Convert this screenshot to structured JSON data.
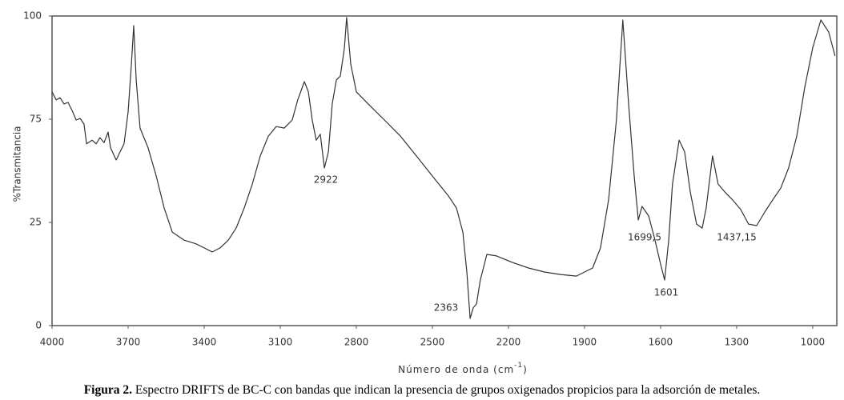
{
  "chart_data": {
    "type": "line",
    "y_label": "%Transmitancia",
    "x_label": [
      "Número de onda (cm",
      "-1",
      ")"
    ],
    "x": [
      4000,
      3984,
      3968,
      3953,
      3937,
      3921,
      3905,
      3889,
      3874,
      3864,
      3842,
      3826,
      3811,
      3795,
      3779,
      3769,
      3747,
      3732,
      3716,
      3700,
      3687,
      3678,
      3668,
      3653,
      3621,
      3589,
      3558,
      3526,
      3479,
      3432,
      3400,
      3368,
      3337,
      3305,
      3274,
      3242,
      3210,
      3179,
      3147,
      3116,
      3084,
      3053,
      3031,
      3005,
      2989,
      2974,
      2958,
      2942,
      2926,
      2910,
      2895,
      2879,
      2863,
      2847,
      2838,
      2822,
      2800,
      2753,
      2689,
      2626,
      2563,
      2500,
      2437,
      2405,
      2380,
      2364,
      2351,
      2339,
      2326,
      2311,
      2285,
      2247,
      2184,
      2121,
      2058,
      1995,
      1932,
      1868,
      1837,
      1805,
      1774,
      1749,
      1726,
      1704,
      1688,
      1673,
      1647,
      1622,
      1600,
      1584,
      1568,
      1553,
      1527,
      1505,
      1483,
      1458,
      1436,
      1420,
      1395,
      1373,
      1347,
      1316,
      1284,
      1253,
      1221,
      1189,
      1158,
      1126,
      1095,
      1063,
      1032,
      1000,
      968,
      937,
      912
    ],
    "series": [
      {
        "color": "#333333",
        "values": [
          75.5,
          72.9,
          73.6,
          71.6,
          72.1,
          69.5,
          66.4,
          66.9,
          65.1,
          58.7,
          59.9,
          58.7,
          60.7,
          59.1,
          62.5,
          57.4,
          53.5,
          56.1,
          58.7,
          69.0,
          84.5,
          96.9,
          79.3,
          63.8,
          57.4,
          48.3,
          38.0,
          30.2,
          27.6,
          26.4,
          25.1,
          23.8,
          25.1,
          27.6,
          31.5,
          38.0,
          45.7,
          54.8,
          61.2,
          64.3,
          63.8,
          66.4,
          72.9,
          78.8,
          75.5,
          66.4,
          59.9,
          61.8,
          50.9,
          56.1,
          71.6,
          79.3,
          80.6,
          89.7,
          99.5,
          84.5,
          75.5,
          71.6,
          66.4,
          61.2,
          54.8,
          48.3,
          41.9,
          38.0,
          30.2,
          17.3,
          2.3,
          5.7,
          7.0,
          14.7,
          23.0,
          22.5,
          20.4,
          18.6,
          17.3,
          16.5,
          16.0,
          18.6,
          25.1,
          40.6,
          66.4,
          98.7,
          71.6,
          48.3,
          34.1,
          38.5,
          35.4,
          27.6,
          19.9,
          14.7,
          27.6,
          45.7,
          59.9,
          56.1,
          43.2,
          32.8,
          31.5,
          38.0,
          54.8,
          45.7,
          43.2,
          40.6,
          37.5,
          32.8,
          32.3,
          36.7,
          40.6,
          44.4,
          50.9,
          61.2,
          76.7,
          89.7,
          98.7,
          94.8,
          87.1
        ]
      }
    ],
    "xlim": [
      4000,
      905
    ],
    "xticks": [
      4000,
      3700,
      3400,
      3100,
      2800,
      2500,
      2200,
      1900,
      1600,
      1300,
      1000
    ],
    "ylim": [
      0,
      100
    ],
    "yticks": [
      0,
      {
        "value": 33.33,
        "label": "25"
      },
      {
        "value": 66.67,
        "label": "75"
      },
      100
    ],
    "annotations": [
      "2922",
      "2363",
      "1699,5",
      "1601",
      "1437,15"
    ]
  },
  "caption": {
    "label": "Figura 2.",
    "text": "Espectro DRIFTS de BC-C con bandas que indican la presencia de grupos oxigenados propicios para la adsorción de metales."
  }
}
